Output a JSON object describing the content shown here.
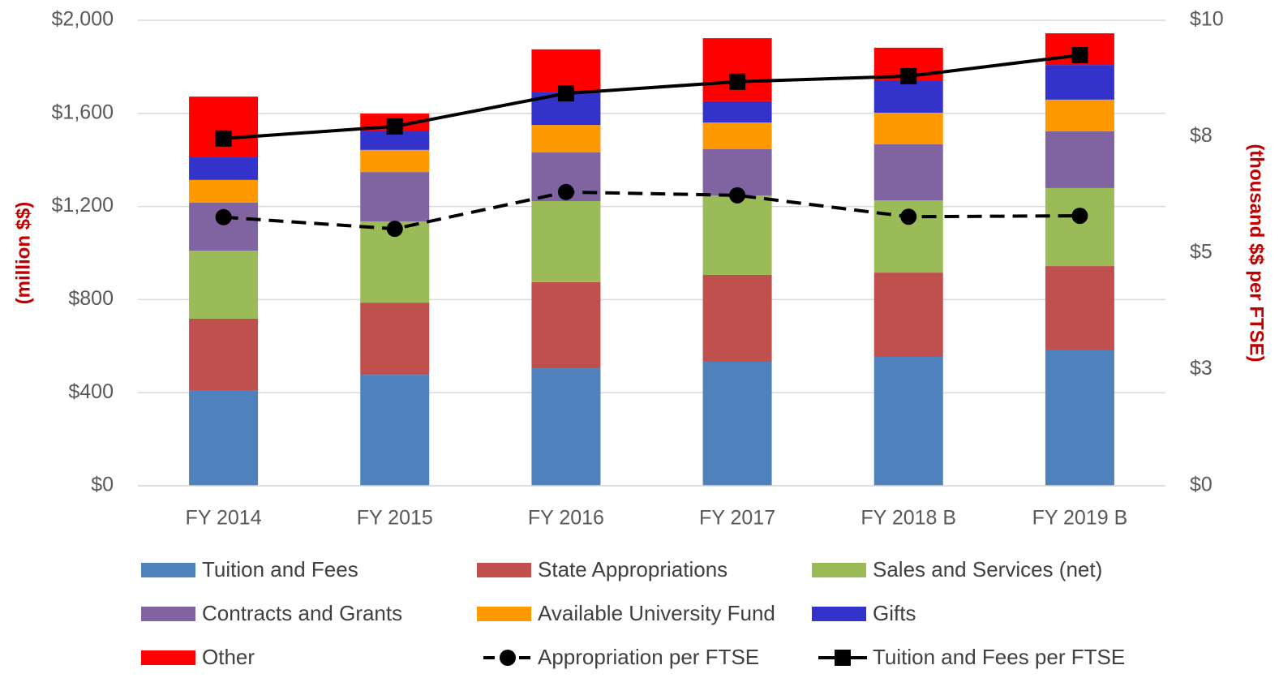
{
  "chart_data": {
    "type": "stacked_bar",
    "categories": [
      "FY 2014",
      "FY 2015",
      "FY 2016",
      "FY 2017",
      "FY 2018 B",
      "FY 2019 B"
    ],
    "ylabel": "(million $$)",
    "y2label": "(thousand $$ per FTSE)",
    "ylim": [
      0,
      2000
    ],
    "yticks": [
      {
        "value": 0,
        "label": "$0"
      },
      {
        "value": 400,
        "label": "$400"
      },
      {
        "value": 800,
        "label": "$800"
      },
      {
        "value": 1200,
        "label": "$1,200"
      },
      {
        "value": 1600,
        "label": "$1,600"
      },
      {
        "value": 2000,
        "label": "$2,000"
      }
    ],
    "y2lim": [
      0,
      10
    ],
    "y2ticks": [
      {
        "value": 0,
        "label": "$0"
      },
      {
        "value": 2.5,
        "label": "$3"
      },
      {
        "value": 5,
        "label": "$5"
      },
      {
        "value": 7.5,
        "label": "$8"
      },
      {
        "value": 10,
        "label": "$10"
      }
    ],
    "grid": true,
    "series": [
      {
        "name": "Tuition and Fees",
        "color": "#4f81bd",
        "values": [
          411,
          477,
          505,
          533,
          554,
          582
        ]
      },
      {
        "name": "State Appropriations",
        "color": "#c0504d",
        "values": [
          307,
          310,
          370,
          373,
          362,
          362
        ]
      },
      {
        "name": "Sales and Services (net)",
        "color": "#9bbb59",
        "values": [
          292,
          349,
          348,
          341,
          310,
          335
        ]
      },
      {
        "name": "Contracts and Grants",
        "color": "#8064a2",
        "values": [
          206,
          212,
          209,
          199,
          241,
          244
        ]
      },
      {
        "name": "Available University Fund",
        "color": "#ff9900",
        "values": [
          98,
          95,
          118,
          115,
          136,
          136
        ]
      },
      {
        "name": "Gifts",
        "color": "#3333cc",
        "values": [
          97,
          83,
          140,
          91,
          139,
          149
        ]
      },
      {
        "name": "Other",
        "color": "#ff0000",
        "values": [
          261,
          73,
          185,
          271,
          140,
          136
        ]
      },
      {
        "name": "Appropriation per FTSE",
        "color": "#000000",
        "type": "line",
        "axis": "y2",
        "marker": "circle",
        "dashed": true,
        "values": [
          5.77,
          5.52,
          6.31,
          6.24,
          5.78,
          5.8
        ]
      },
      {
        "name": "Tuition and Fees per FTSE",
        "color": "#000000",
        "type": "line",
        "axis": "y2",
        "marker": "square",
        "dashed": false,
        "values": [
          7.46,
          7.72,
          8.43,
          8.68,
          8.8,
          9.25
        ]
      }
    ]
  }
}
